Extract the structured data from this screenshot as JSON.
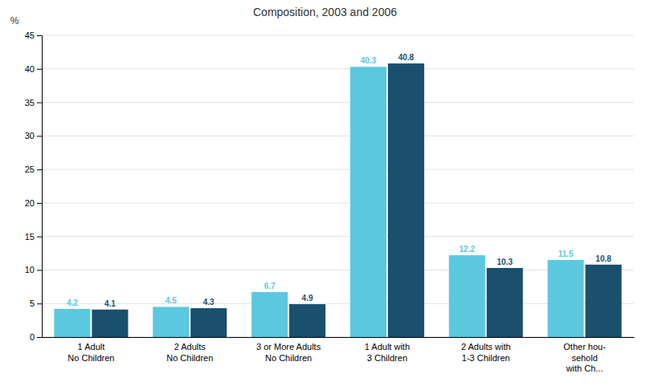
{
  "chart_data": {
    "type": "bar",
    "title": "Composition, 2003 and 2006",
    "ylabel": "%",
    "categories": [
      "1 Adult\nNo Children",
      "2 Adults\nNo Children",
      "3 or More Adults\nNo Children",
      "1 Adult with\n3 Children",
      "2 Adults with\n1-3 Children",
      "Other hou-\nsehold\nwith Ch..."
    ],
    "series": [
      {
        "color": "#5BC8E0",
        "values": [
          4.2,
          4.5,
          6.7,
          40.3,
          12.2,
          11.5
        ]
      },
      {
        "color": "#1A4F6E",
        "values": [
          4.1,
          4.3,
          4.9,
          40.8,
          10.3,
          10.8
        ]
      }
    ],
    "ylim": [
      0,
      45
    ],
    "yticks": [
      0,
      5,
      10,
      15,
      20,
      25,
      30,
      35,
      40,
      45
    ],
    "grid": true,
    "data_labels": true
  }
}
